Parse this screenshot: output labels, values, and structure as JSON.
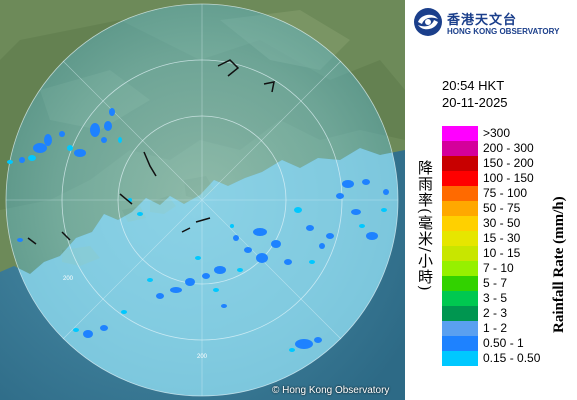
{
  "map": {
    "copyright": "© Hong Kong Observatory",
    "ring_label": "200",
    "colors": {
      "land": "#6f8a5e",
      "sea": "#2f6f8f",
      "radar_area": "#8fd8ec",
      "radar_ring": "#d9f1f7"
    }
  },
  "logo": {
    "name_zh": "香港天文台",
    "name_en": "HONG KONG OBSERVATORY"
  },
  "timestamp": {
    "time": "20:54 HKT",
    "date": "20-11-2025"
  },
  "legend": {
    "title_zh": "降雨率(毫米/小時)",
    "title_en": "Rainfall Rate (mm/h)",
    "items": [
      {
        "label": ">300",
        "color": "#ff00ff"
      },
      {
        "label": "200 - 300",
        "color": "#d4009b"
      },
      {
        "label": "150 - 200",
        "color": "#c80000"
      },
      {
        "label": "100 - 150",
        "color": "#ff0000"
      },
      {
        "label": "75 - 100",
        "color": "#ff6a00"
      },
      {
        "label": "50 - 75",
        "color": "#ffa800"
      },
      {
        "label": "30 - 50",
        "color": "#ffd000"
      },
      {
        "label": "15 - 30",
        "color": "#e6e600"
      },
      {
        "label": "10 - 15",
        "color": "#c8e600"
      },
      {
        "label": "7 - 10",
        "color": "#96f000"
      },
      {
        "label": "5 - 7",
        "color": "#32d200"
      },
      {
        "label": "3 - 5",
        "color": "#00c850"
      },
      {
        "label": "2 - 3",
        "color": "#009650"
      },
      {
        "label": "1 - 2",
        "color": "#5aa0f0"
      },
      {
        "label": "0.50 - 1",
        "color": "#1e82ff"
      },
      {
        "label": "0.15 - 0.50",
        "color": "#00c8ff"
      }
    ]
  }
}
